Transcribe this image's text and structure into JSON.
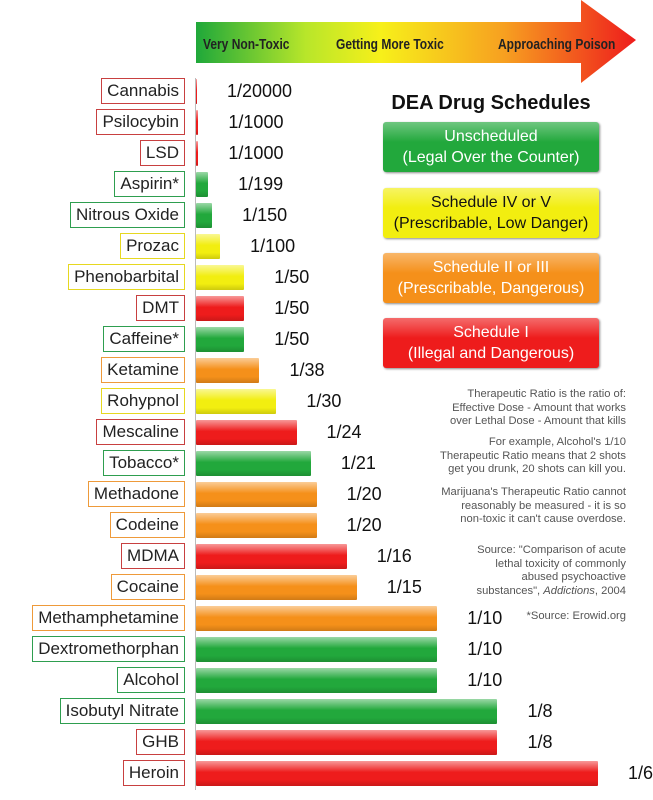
{
  "arrow": {
    "labels": [
      "Very Non-Toxic",
      "Getting More Toxic",
      "Approaching Poison"
    ]
  },
  "chart_data": {
    "type": "bar",
    "orientation": "horizontal",
    "measure": "Therapeutic Ratio",
    "categories": [
      "Cannabis",
      "Psilocybin",
      "LSD",
      "Aspirin*",
      "Nitrous Oxide",
      "Prozac",
      "Phenobarbital",
      "DMT",
      "Caffeine*",
      "Ketamine",
      "Rohypnol",
      "Mescaline",
      "Tobacco*",
      "Methadone",
      "Codeine",
      "MDMA",
      "Cocaine",
      "Methamphetamine",
      "Dextromethorphan",
      "Alcohol",
      "Isobutyl Nitrate",
      "GHB",
      "Heroin"
    ],
    "labels": [
      "1/20000",
      "1/1000",
      "1/1000",
      "1/199",
      "1/150",
      "1/100",
      "1/50",
      "1/50",
      "1/50",
      "1/38",
      "1/30",
      "1/24",
      "1/21",
      "1/20",
      "1/20",
      "1/16",
      "1/15",
      "1/10",
      "1/10",
      "1/10",
      "1/8",
      "1/8",
      "1/6"
    ],
    "values": [
      5e-05,
      0.001,
      0.001,
      0.005025,
      0.006667,
      0.01,
      0.02,
      0.02,
      0.02,
      0.026316,
      0.033333,
      0.041667,
      0.047619,
      0.05,
      0.05,
      0.0625,
      0.066667,
      0.1,
      0.1,
      0.1,
      0.125,
      0.125,
      0.166667
    ],
    "schedules": [
      "I",
      "I",
      "I",
      "unscheduled",
      "unscheduled",
      "IV-V",
      "IV-V",
      "I",
      "unscheduled",
      "II-III",
      "IV-V",
      "I",
      "unscheduled",
      "II-III",
      "II-III",
      "I",
      "II-III",
      "II-III",
      "unscheduled",
      "unscheduled",
      "unscheduled",
      "I",
      "I"
    ]
  },
  "colors": {
    "unscheduled": "#22a83c",
    "IV-V": "#f2ee10",
    "II-III": "#f5901a",
    "I": "#ee1c1c",
    "border_unscheduled": "#2e9e4f",
    "border_IV-V": "#e6d820",
    "border_II-III": "#ee9a3a",
    "border_I": "#c84040"
  },
  "legend": {
    "title": "DEA Drug Schedules",
    "items": [
      {
        "key": "unscheduled",
        "line1": "Unscheduled",
        "line2": "(Legal Over the Counter)"
      },
      {
        "key": "IV-V",
        "line1": "Schedule IV or V",
        "line2": "(Prescribable, Low Danger)"
      },
      {
        "key": "II-III",
        "line1": "Schedule II or III",
        "line2": "(Prescribable, Dangerous)"
      },
      {
        "key": "I",
        "line1": "Schedule I",
        "line2": "(Illegal and Dangerous)"
      }
    ]
  },
  "notes": {
    "definition": "Therapeutic Ratio is the ratio of:\nEffective Dose - Amount that works\nover Lethal Dose - Amount that kills",
    "example": "For example, Alcohol's 1/10\nTherapeutic Ratio means that 2 shots\nget you drunk, 20 shots can kill you.",
    "marijuana": "Marijuana's Therapeutic Ratio cannot\nreasonably be measured - it is so\nnon-toxic it can't cause overdose.",
    "source_prefix": "Source: \"Comparison of acute\nlethal toxicity of commonly\nabused psychoactive\nsubstances\", ",
    "source_journal": "Addictions",
    "source_year": ", 2004",
    "erowid": "*Source: Erowid.org"
  }
}
